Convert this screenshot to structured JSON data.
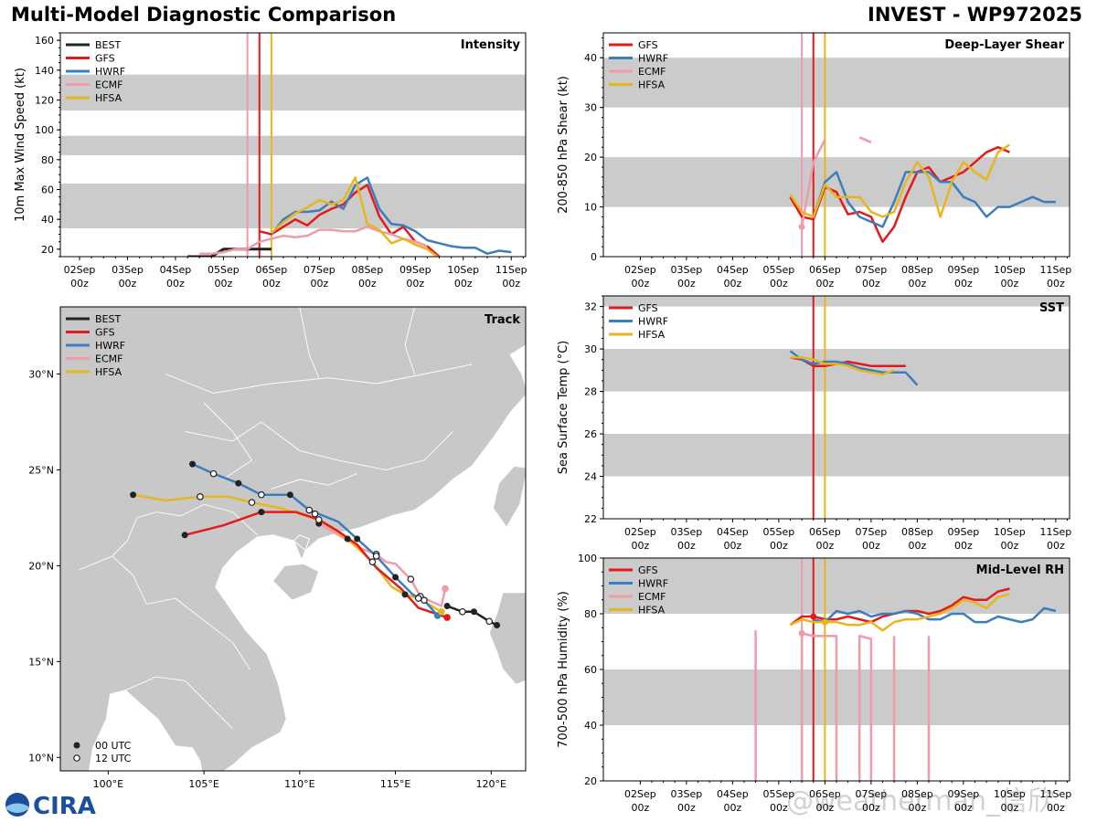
{
  "header": {
    "title_left": "Multi-Model Diagnostic Comparison",
    "title_right": "INVEST - WP972025"
  },
  "logo_text": "CIRA",
  "watermark": "@weatherman_信欣",
  "colors": {
    "BEST": "#222222",
    "GFS": "#e31a1c",
    "HWRF": "#3a7ebf",
    "ECMF": "#f09aaa",
    "HFSA": "#e8b61c"
  },
  "time_axis": {
    "ticks": [
      2,
      3,
      4,
      5,
      6,
      7,
      8,
      9,
      10,
      11
    ],
    "labels_top": [
      "02Sep",
      "03Sep",
      "04Sep",
      "05Sep",
      "06Sep",
      "07Sep",
      "08Sep",
      "09Sep",
      "10Sep",
      "11Sep"
    ],
    "labels_bottom": [
      "00z",
      "00z",
      "00z",
      "00z",
      "00z",
      "00z",
      "00z",
      "00z",
      "00z",
      "00z"
    ]
  },
  "chart_data": [
    {
      "id": "intensity",
      "type": "line",
      "title": "Intensity",
      "ylabel": "10m Max Wind Speed (kt)",
      "xlim": [
        1.6,
        11.3
      ],
      "ylim": [
        15,
        165
      ],
      "yticks": [
        20,
        40,
        60,
        80,
        100,
        120,
        140,
        160
      ],
      "shaded_bands": [
        [
          34,
          64
        ],
        [
          83,
          96
        ],
        [
          113,
          137
        ]
      ],
      "legend": [
        "BEST",
        "GFS",
        "HWRF",
        "ECMF",
        "HFSA"
      ],
      "vlines": [
        {
          "model": "ECMF",
          "x": 5.5
        },
        {
          "model": "GFS",
          "x": 5.75
        },
        {
          "model": "HFSA",
          "x": 6.0
        }
      ],
      "series": [
        {
          "name": "BEST",
          "x": [
            4.25,
            4.75,
            5.0,
            5.5,
            6.0
          ],
          "y": [
            15,
            15,
            20,
            20,
            20
          ]
        },
        {
          "name": "GFS",
          "x": [
            5.75,
            6.0,
            6.25,
            6.5,
            6.75,
            7.0,
            7.25,
            7.5,
            7.75,
            8.0,
            8.25,
            8.5,
            8.75,
            9.0,
            9.25,
            9.5
          ],
          "y": [
            32,
            30,
            35,
            40,
            36,
            43,
            47,
            50,
            58,
            63,
            42,
            30,
            35,
            25,
            22,
            15
          ]
        },
        {
          "name": "HWRF",
          "x": [
            6.0,
            6.25,
            6.5,
            6.75,
            7.0,
            7.25,
            7.5,
            7.75,
            8.0,
            8.25,
            8.5,
            8.75,
            9.0,
            9.25,
            9.5,
            9.75,
            10.0,
            10.25,
            10.5,
            10.75,
            11.0
          ],
          "y": [
            30,
            40,
            45,
            45,
            46,
            52,
            47,
            63,
            68,
            47,
            37,
            36,
            32,
            26,
            24,
            22,
            21,
            21,
            17,
            19,
            18
          ]
        },
        {
          "name": "ECMF",
          "x": [
            4.5,
            4.75,
            5.0,
            5.25,
            5.5,
            5.75,
            6.0,
            6.25,
            6.5,
            6.75,
            7.0,
            7.25,
            7.5,
            7.75,
            8.0,
            8.25,
            8.5,
            8.75,
            9.0,
            9.25
          ],
          "y": [
            17,
            17,
            18,
            20,
            20,
            25,
            27,
            29,
            28,
            29,
            33,
            33,
            32,
            32,
            35,
            32,
            30,
            27,
            25,
            22
          ]
        },
        {
          "name": "HFSA",
          "x": [
            6.0,
            6.25,
            6.5,
            6.75,
            7.0,
            7.25,
            7.5,
            7.75,
            8.0,
            8.25,
            8.5,
            8.75,
            9.0,
            9.25,
            9.5
          ],
          "y": [
            31,
            38,
            44,
            48,
            53,
            50,
            53,
            68,
            37,
            33,
            24,
            27,
            23,
            20,
            14
          ]
        }
      ]
    },
    {
      "id": "shear",
      "type": "line",
      "title": "Deep-Layer Shear",
      "ylabel": "200-850 hPa Shear (kt)",
      "xlim": [
        1.2,
        11.3
      ],
      "ylim": [
        0,
        45
      ],
      "yticks": [
        0,
        10,
        20,
        30,
        40
      ],
      "shaded_bands": [
        [
          10,
          20
        ],
        [
          30,
          40
        ]
      ],
      "legend": [
        "GFS",
        "HWRF",
        "ECMF",
        "HFSA"
      ],
      "vlines": [
        {
          "model": "ECMF",
          "x": 5.5
        },
        {
          "model": "GFS",
          "x": 5.75
        },
        {
          "model": "HFSA",
          "x": 6.0
        }
      ],
      "series": [
        {
          "name": "GFS",
          "x": [
            5.25,
            5.5,
            5.75,
            6.0,
            6.25,
            6.5,
            6.75,
            7.0,
            7.25,
            7.5,
            7.75,
            8.0,
            8.25,
            8.5,
            8.75,
            9.0,
            9.25,
            9.5,
            9.75,
            10.0
          ],
          "y": [
            12,
            8,
            7.5,
            14,
            13,
            8.5,
            9,
            8,
            3,
            6,
            12,
            17,
            18,
            15,
            16,
            17,
            19,
            21,
            22,
            21
          ]
        },
        {
          "name": "HWRF",
          "x": [
            5.75,
            6.0,
            6.25,
            6.5,
            6.75,
            7.0,
            7.25,
            7.5,
            7.75,
            8.0,
            8.25,
            8.5,
            8.75,
            9.0,
            9.25,
            9.5,
            9.75,
            10.0,
            10.25,
            10.5,
            10.75,
            11.0
          ],
          "y": [
            8,
            15,
            17,
            11,
            8,
            7,
            6,
            11,
            17,
            17,
            17,
            15,
            15,
            12,
            11,
            8,
            10,
            10,
            11,
            12,
            11,
            11
          ]
        },
        {
          "name": "ECMF",
          "x": [
            5.5,
            5.75,
            6.0
          ],
          "y": [
            6,
            19,
            23.5
          ]
        },
        {
          "name": "ECMF",
          "x": [
            6.75,
            7.0
          ],
          "y": [
            24,
            23
          ]
        },
        {
          "name": "HFSA",
          "x": [
            5.25,
            5.5,
            5.75,
            6.0,
            6.25,
            6.5,
            6.75,
            7.0,
            7.25,
            7.5,
            7.75,
            8.0,
            8.25,
            8.5,
            8.75,
            9.0,
            9.25,
            9.5,
            9.75,
            10.0
          ],
          "y": [
            12.5,
            9,
            8,
            14.5,
            12,
            12,
            12,
            9,
            8,
            9,
            15,
            19,
            16,
            8,
            15,
            19,
            17,
            15.5,
            21,
            22.5
          ]
        }
      ],
      "points": [
        {
          "model": "ECMF",
          "x": 5.5,
          "y": 6
        }
      ]
    },
    {
      "id": "track",
      "type": "scatter",
      "title": "Track",
      "xlim": [
        97.5,
        121.8
      ],
      "ylim": [
        9.3,
        33.5
      ],
      "xticks": [
        100,
        105,
        110,
        115,
        120
      ],
      "xtick_labels": [
        "100°E",
        "105°E",
        "110°E",
        "115°E",
        "120°E"
      ],
      "yticks": [
        10,
        15,
        20,
        25,
        30
      ],
      "ytick_labels": [
        "10°N",
        "15°N",
        "20°N",
        "25°N",
        "30°N"
      ],
      "legend": [
        "BEST",
        "GFS",
        "HWRF",
        "ECMF",
        "HFSA"
      ],
      "marker_legend": [
        "00 UTC",
        "12 UTC"
      ],
      "tracks": [
        {
          "name": "BEST",
          "lon": [
            120.3,
            119.9,
            119.1,
            118.5,
            117.7
          ],
          "lat": [
            16.9,
            17.1,
            17.6,
            17.6,
            17.9
          ],
          "markers": [
            1,
            0,
            1,
            0,
            1
          ]
        },
        {
          "name": "GFS",
          "lon": [
            117.7,
            116.2,
            115.3,
            114.0,
            113.0,
            112.0,
            111.0,
            109.8,
            108.0,
            106.0,
            104.0
          ],
          "lat": [
            17.3,
            17.8,
            18.8,
            19.9,
            21.1,
            21.8,
            22.4,
            22.8,
            22.8,
            22.1,
            21.6
          ],
          "markers": [
            -1,
            -1,
            -1,
            -1,
            -1,
            -1,
            -1,
            -1,
            1,
            -1,
            1
          ]
        },
        {
          "name": "HWRF",
          "lon": [
            117.2,
            116.5,
            115.9,
            115.0,
            114.0,
            113.0,
            112.0,
            110.5,
            109.5,
            108.0,
            106.8,
            105.5,
            104.4
          ],
          "lat": [
            17.4,
            18.2,
            18.5,
            19.4,
            20.5,
            21.4,
            22.3,
            22.9,
            23.7,
            23.7,
            24.3,
            24.8,
            25.3
          ],
          "markers": [
            1,
            0,
            -1,
            1,
            0,
            1,
            -1,
            0,
            1,
            0,
            1,
            0,
            1
          ]
        },
        {
          "name": "ECMF",
          "lon": [
            117.6,
            117.4,
            116.3,
            115.8,
            115.0,
            114.5,
            114.0,
            113.2,
            112.2,
            111.0,
            110.8
          ],
          "lat": [
            18.8,
            17.9,
            18.4,
            19.3,
            20.1,
            20.2,
            20.6,
            20.9,
            21.5,
            22.2,
            22.7
          ],
          "markers": [
            1,
            -1,
            0,
            0,
            -1,
            -1,
            0,
            -1,
            -1,
            1,
            0
          ]
        },
        {
          "name": "HFSA",
          "lon": [
            117.4,
            116.2,
            115.5,
            114.8,
            113.8,
            112.5,
            111.0,
            109.0,
            107.5,
            106.3,
            104.8,
            103.0,
            101.3
          ],
          "lat": [
            17.6,
            18.3,
            18.5,
            18.9,
            20.2,
            21.4,
            22.4,
            23.0,
            23.3,
            23.6,
            23.6,
            23.4,
            23.7
          ],
          "markers": [
            -1,
            0,
            1,
            -1,
            0,
            1,
            0,
            -1,
            0,
            -1,
            0,
            -1,
            1
          ]
        }
      ]
    },
    {
      "id": "sst",
      "type": "line",
      "title": "SST",
      "ylabel": "Sea Surface Temp (°C)",
      "xlim": [
        1.2,
        11.3
      ],
      "ylim": [
        22,
        32.5
      ],
      "yticks": [
        22,
        24,
        26,
        28,
        30,
        32
      ],
      "shaded_bands": [
        [
          24,
          26
        ],
        [
          28,
          30
        ],
        [
          32,
          32.5
        ]
      ],
      "legend": [
        "GFS",
        "HWRF",
        "HFSA"
      ],
      "vlines": [
        {
          "model": "GFS",
          "x": 5.75
        },
        {
          "model": "HFSA",
          "x": 6.0
        }
      ],
      "series": [
        {
          "name": "GFS",
          "x": [
            5.25,
            5.5,
            5.75,
            6.0,
            6.25,
            6.5,
            6.75,
            7.0,
            7.25,
            7.5,
            7.75
          ],
          "y": [
            29.6,
            29.5,
            29.2,
            29.2,
            29.3,
            29.4,
            29.3,
            29.2,
            29.2,
            29.2,
            29.2
          ]
        },
        {
          "name": "HWRF",
          "x": [
            5.25,
            5.5,
            5.75,
            6.0,
            6.25,
            6.5,
            6.75,
            7.0,
            7.25,
            7.5,
            7.75,
            8.0
          ],
          "y": [
            29.9,
            29.5,
            29.3,
            29.4,
            29.4,
            29.3,
            29.1,
            29.0,
            28.9,
            28.9,
            28.9,
            28.3
          ]
        },
        {
          "name": "HFSA",
          "x": [
            5.25,
            5.5,
            5.75,
            6.0,
            6.25,
            6.5,
            6.75,
            7.0,
            7.25,
            7.5
          ],
          "y": [
            29.6,
            29.6,
            29.5,
            29.3,
            29.3,
            29.2,
            29.0,
            28.9,
            28.8,
            29.0
          ]
        }
      ]
    },
    {
      "id": "rh",
      "type": "line",
      "title": "Mid-Level RH",
      "ylabel": "700-500 hPa Humidity (%)",
      "xlim": [
        1.2,
        11.3
      ],
      "ylim": [
        20,
        100
      ],
      "yticks": [
        20,
        40,
        60,
        80,
        100
      ],
      "shaded_bands": [
        [
          40,
          60
        ],
        [
          80,
          100
        ]
      ],
      "legend": [
        "GFS",
        "HWRF",
        "ECMF",
        "HFSA"
      ],
      "vlines": [
        {
          "model": "ECMF",
          "x": 5.5
        },
        {
          "model": "GFS",
          "x": 5.75
        },
        {
          "model": "HFSA",
          "x": 6.0
        }
      ],
      "series": [
        {
          "name": "GFS",
          "x": [
            5.25,
            5.5,
            5.75,
            6.0,
            6.25,
            6.5,
            6.75,
            7.0,
            7.25,
            7.5,
            7.75,
            8.0,
            8.25,
            8.5,
            8.75,
            9.0,
            9.25,
            9.5,
            9.75,
            10.0
          ],
          "y": [
            76,
            79,
            79,
            78,
            78,
            79,
            78,
            77,
            79,
            80,
            81,
            81,
            80,
            81,
            83,
            86,
            85,
            85,
            88,
            89
          ]
        },
        {
          "name": "HWRF",
          "x": [
            5.75,
            6.0,
            6.25,
            6.5,
            6.75,
            7.0,
            7.25,
            7.5,
            7.75,
            8.0,
            8.25,
            8.5,
            8.75,
            9.0,
            9.25,
            9.5,
            9.75,
            10.0,
            10.25,
            10.5,
            10.75,
            11.0
          ],
          "y": [
            78,
            77,
            81,
            80,
            81,
            79,
            80,
            80,
            81,
            80,
            78,
            78,
            80,
            80,
            77,
            77,
            79,
            78,
            77,
            78,
            82,
            81
          ]
        },
        {
          "name": "ECMF",
          "x": [
            4.5,
            4.5
          ],
          "y": [
            20,
            74
          ]
        },
        {
          "name": "ECMF",
          "x": [
            5.5,
            5.5,
            5.75,
            6.0,
            6.25,
            6.25
          ],
          "y": [
            20,
            73,
            72,
            72,
            72,
            20
          ]
        },
        {
          "name": "ECMF",
          "x": [
            6.75,
            6.75,
            7.0,
            7.0
          ],
          "y": [
            20,
            72,
            71,
            20
          ]
        },
        {
          "name": "ECMF",
          "x": [
            7.5,
            7.5
          ],
          "y": [
            20,
            72
          ]
        },
        {
          "name": "ECMF",
          "x": [
            8.25,
            8.25
          ],
          "y": [
            20,
            72
          ]
        },
        {
          "name": "HFSA",
          "x": [
            5.25,
            5.5,
            5.75,
            6.0,
            6.25,
            6.5,
            6.75,
            7.0,
            7.25,
            7.5,
            7.75,
            8.0,
            8.25,
            8.5,
            8.75,
            9.0,
            9.25,
            9.5,
            9.75,
            10.0
          ],
          "y": [
            76,
            78,
            77,
            77,
            77,
            76,
            76,
            77,
            74,
            77,
            78,
            78,
            79,
            80,
            82,
            85,
            84,
            82,
            86,
            87
          ]
        }
      ],
      "points": [
        {
          "model": "ECMF",
          "x": 5.5,
          "y": 73
        },
        {
          "model": "GFS",
          "x": 5.75,
          "y": 79
        },
        {
          "model": "HFSA",
          "x": 6.0,
          "y": 77
        }
      ]
    }
  ]
}
